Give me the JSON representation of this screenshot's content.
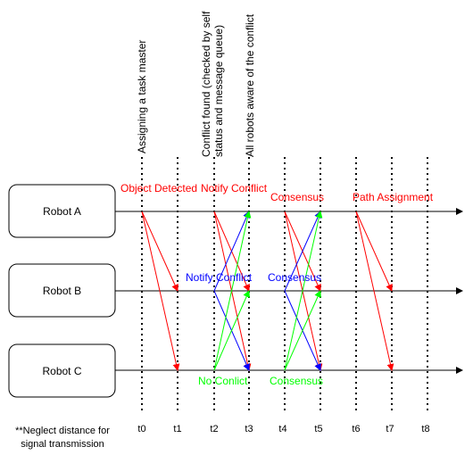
{
  "robots": [
    {
      "id": "A",
      "label": "Robot A"
    },
    {
      "id": "B",
      "label": "Robot B"
    },
    {
      "id": "C",
      "label": "Robot C"
    }
  ],
  "time_ticks": [
    "t0",
    "t1",
    "t2",
    "t3",
    "t4",
    "t5",
    "t6",
    "t7",
    "t8"
  ],
  "phase_labels": [
    {
      "lines": [
        "Assigning a task master"
      ]
    },
    {
      "lines": [
        "Conflict found (checked by self",
        "status and message queue)"
      ]
    },
    {
      "lines": [
        "All robots aware of the conflict"
      ]
    }
  ],
  "event_labels": {
    "object_detected": "Object Detected",
    "notify_conflict_a": "Notify Conflict",
    "consensus_a": "Consensus",
    "path_assignment": "Path Assignment",
    "notify_conflict_b": "Notify Conflict",
    "consensus_b": "Consensus",
    "no_conflict_c": "No Conlict",
    "consensus_c": "Consensus"
  },
  "footnote": [
    "**Neglect distance for",
    "signal transmission"
  ],
  "colors": {
    "red": "#ff0000",
    "blue": "#0000ff",
    "green": "#00ff00",
    "black": "#000000"
  }
}
